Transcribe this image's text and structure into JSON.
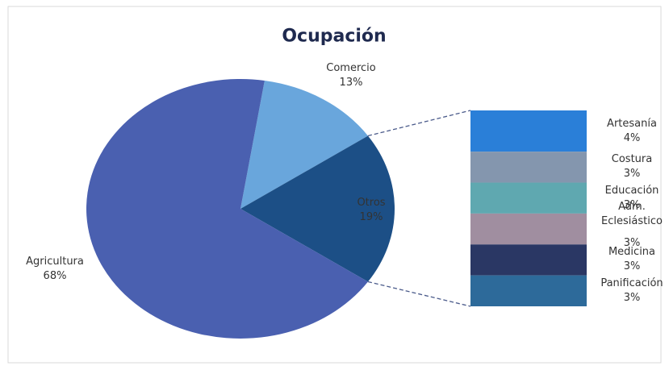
{
  "chart_data": {
    "type": "pie",
    "title": "Ocupación",
    "categories": [
      "Comercio",
      "Otros",
      "Agricultura"
    ],
    "values": [
      13,
      19,
      68
    ],
    "value_labels": [
      "13%",
      "19%",
      "68%"
    ],
    "colors": [
      "#69a6dc",
      "#1c4f86",
      "#4a60b0"
    ],
    "breakout": {
      "categories": [
        "Artesanía",
        "Costura",
        "Educación",
        "Adm. Eclesiástico",
        "Medicina",
        "Panificación"
      ],
      "values": [
        4,
        3,
        3,
        3,
        3,
        3
      ],
      "value_labels": [
        "4%",
        "3%",
        "3%",
        "3%",
        "3%",
        "3%"
      ],
      "colors": [
        "#2a7fd8",
        "#8496ae",
        "#5fa8b0",
        "#a08ea0",
        "#2a3764",
        "#2d6a9a"
      ]
    }
  }
}
